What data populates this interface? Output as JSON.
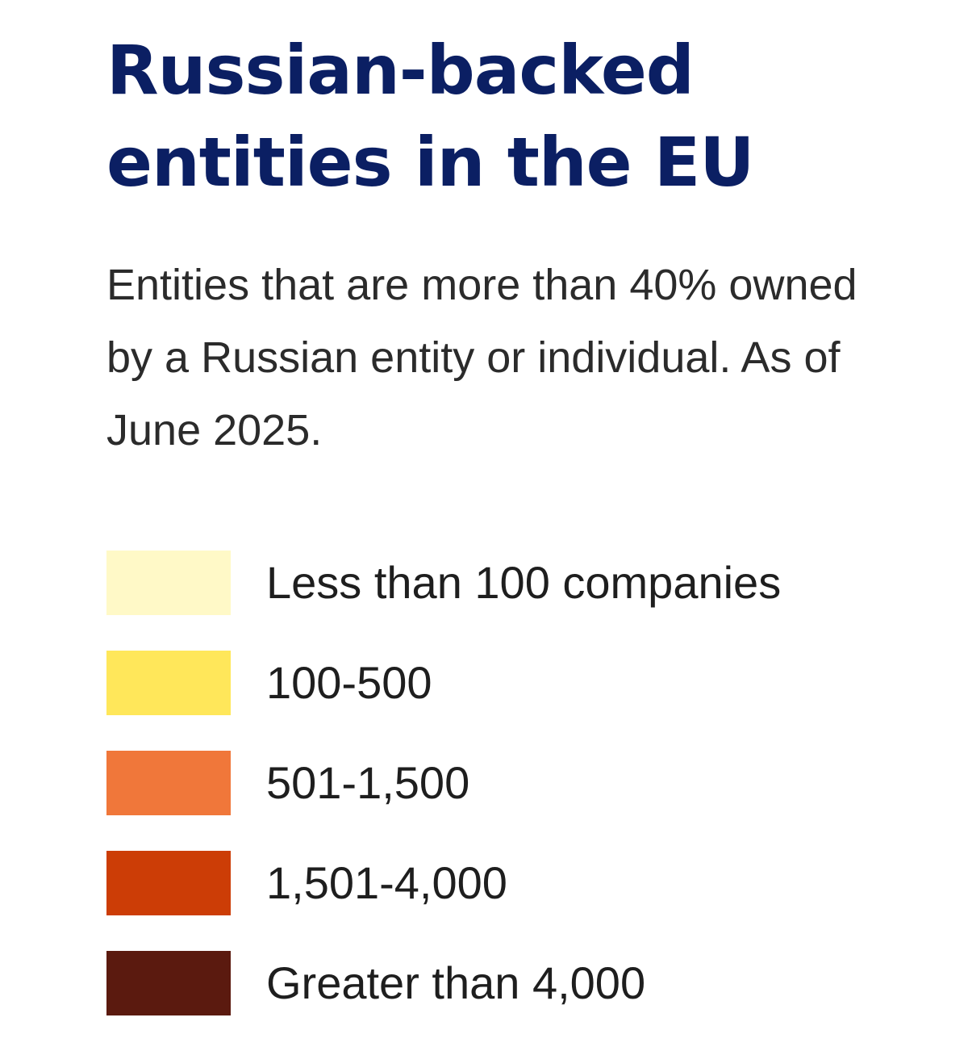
{
  "title": "Russian-backed entities in the EU",
  "subtitle": "Entities that are more than 40% owned by a Russian entity or individual. As of June 2025.",
  "legend": {
    "items": [
      {
        "label": "Less than 100 companies",
        "color": "#fff9c7"
      },
      {
        "label": "100-500",
        "color": "#ffe75a"
      },
      {
        "label": "501-1,500",
        "color": "#f0773a"
      },
      {
        "label": "1,501-4,000",
        "color": "#cc3d06"
      },
      {
        "label": "Greater than 4,000",
        "color": "#5b1a0f"
      }
    ]
  }
}
